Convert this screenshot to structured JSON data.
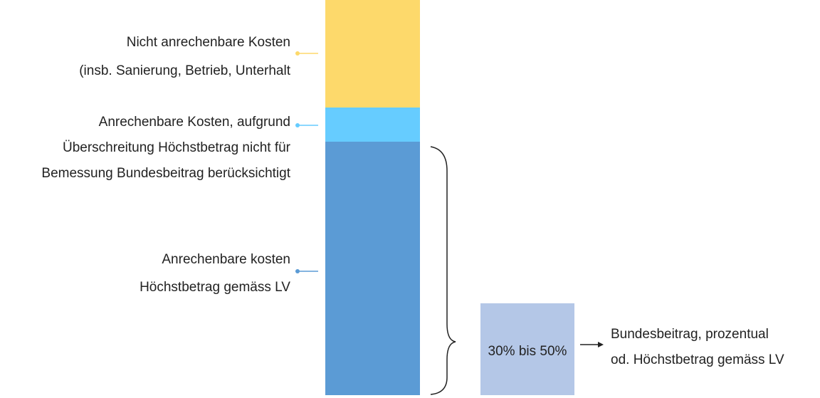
{
  "labels": [
    {
      "lines": [
        "Nicht anrechenbare Kosten",
        "(insb. Sanierung, Betrieb, Unterhalt"
      ]
    },
    {
      "lines": [
        "Anrechenbare Kosten, aufgrund",
        "Überschreitung Höchstbetrag nicht für",
        "Bemessung Bundesbeitrag berücksichtigt"
      ]
    },
    {
      "lines": [
        "Anrechenbare kosten",
        "Höchstbetrag gemäss LV"
      ]
    }
  ],
  "box": {
    "label": "30% bis 50%"
  },
  "result": {
    "lines": [
      "Bundesbeitrag, prozentual",
      "od. Höchstbetrag gemäss LV"
    ]
  }
}
